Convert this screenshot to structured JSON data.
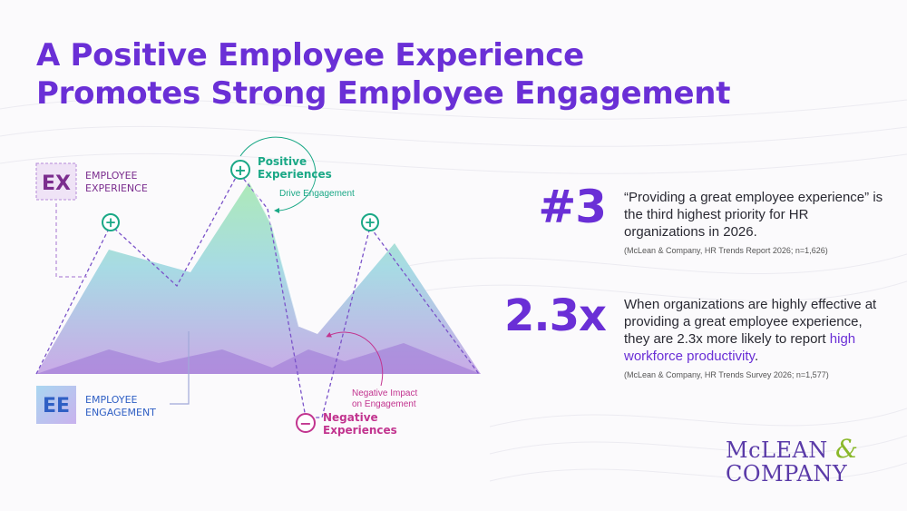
{
  "title": {
    "line1": "A Positive Employee Experience",
    "line2": "Promotes Strong Employee Engagement"
  },
  "diagram": {
    "ex_abbr": "EX",
    "ex_label_line1": "EMPLOYEE",
    "ex_label_line2": "EXPERIENCE",
    "ee_abbr": "EE",
    "ee_label_line1": "EMPLOYEE",
    "ee_label_line2": "ENGAGEMENT",
    "positive_line1": "Positive",
    "positive_line2": "Experiences",
    "drive_engagement": "Drive Engagement",
    "negative_impact_line1": "Negative Impact",
    "negative_impact_line2": "on Engagement",
    "negative_line1": "Negative",
    "negative_line2": "Experiences",
    "plus_symbol": "+",
    "minus_symbol": "−"
  },
  "stats": [
    {
      "number": "#3",
      "text": "“Providing a great employee experience” is the third highest priority for HR organizations in 2026.",
      "source": "(McLean & Company, HR Trends Report 2026; n=1,626)"
    },
    {
      "number": "2.3x",
      "text_before": "When organizations are highly effective at providing a great employee experience, they are 2.3x more likely to report ",
      "highlight": "high workforce productivity",
      "text_after": ".",
      "source": "(McLean & Company, HR Trends Survey 2026; n=1,577)"
    }
  ],
  "logo": {
    "line1": "McLEAN",
    "amp": "&",
    "line2": "COMPANY"
  },
  "colors": {
    "purple": "#6a2fd6",
    "teal": "#1aa886",
    "magenta": "#c2348f",
    "logo_green": "#8ab82a"
  }
}
